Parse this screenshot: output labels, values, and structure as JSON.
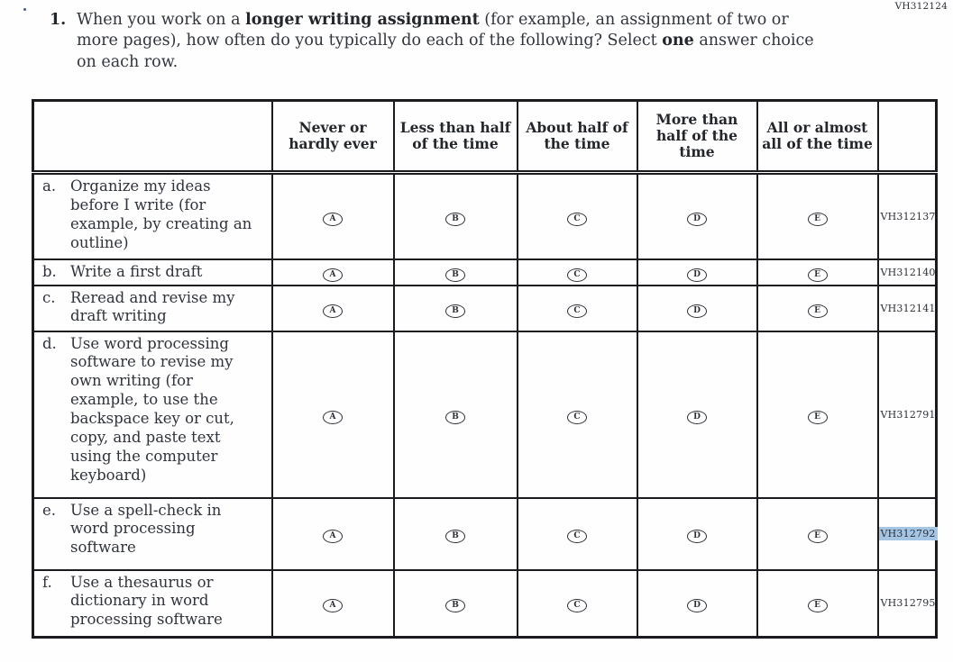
{
  "page": {
    "form_code": "VH312124"
  },
  "question": {
    "number": "1.",
    "part1": "When you work on a ",
    "bold1": "longer writing assignment",
    "part2": " (for example, an assignment of two or more pages), how often do you typically do each of the following? Select ",
    "bold2": "one",
    "part3": " answer choice on each row."
  },
  "table": {
    "columns": [
      "",
      "Never or hardly ever",
      "Less than half of the time",
      "About half of the time",
      "More than half of the time",
      "All or almost all of the time",
      ""
    ],
    "options": [
      "A",
      "B",
      "C",
      "D",
      "E"
    ],
    "rows": [
      {
        "letter": "a.",
        "label": "Organize my ideas before I write (for example, by creating an outline)",
        "code": "VH312137",
        "highlighted": false
      },
      {
        "letter": "b.",
        "label": "Write a first draft",
        "code": "VH312140",
        "highlighted": false
      },
      {
        "letter": "c.",
        "label": "Reread and revise my draft writing",
        "code": "VH312141",
        "highlighted": false
      },
      {
        "letter": "d.",
        "label": "Use word processing software to revise my own writing (for example, to use the backspace key or cut, copy, and paste text using the computer keyboard)",
        "code": "VH312791",
        "highlighted": false
      },
      {
        "letter": "e.",
        "label": "Use a spell-check in word processing software",
        "code": "VH312792",
        "highlighted": true
      },
      {
        "letter": "f.",
        "label": "Use a thesaurus or dictionary in word processing software",
        "code": "VH312795",
        "highlighted": false
      }
    ]
  },
  "colors": {
    "highlight": "#a4c5e4",
    "border": "#191b1e",
    "text": "#30343c"
  }
}
